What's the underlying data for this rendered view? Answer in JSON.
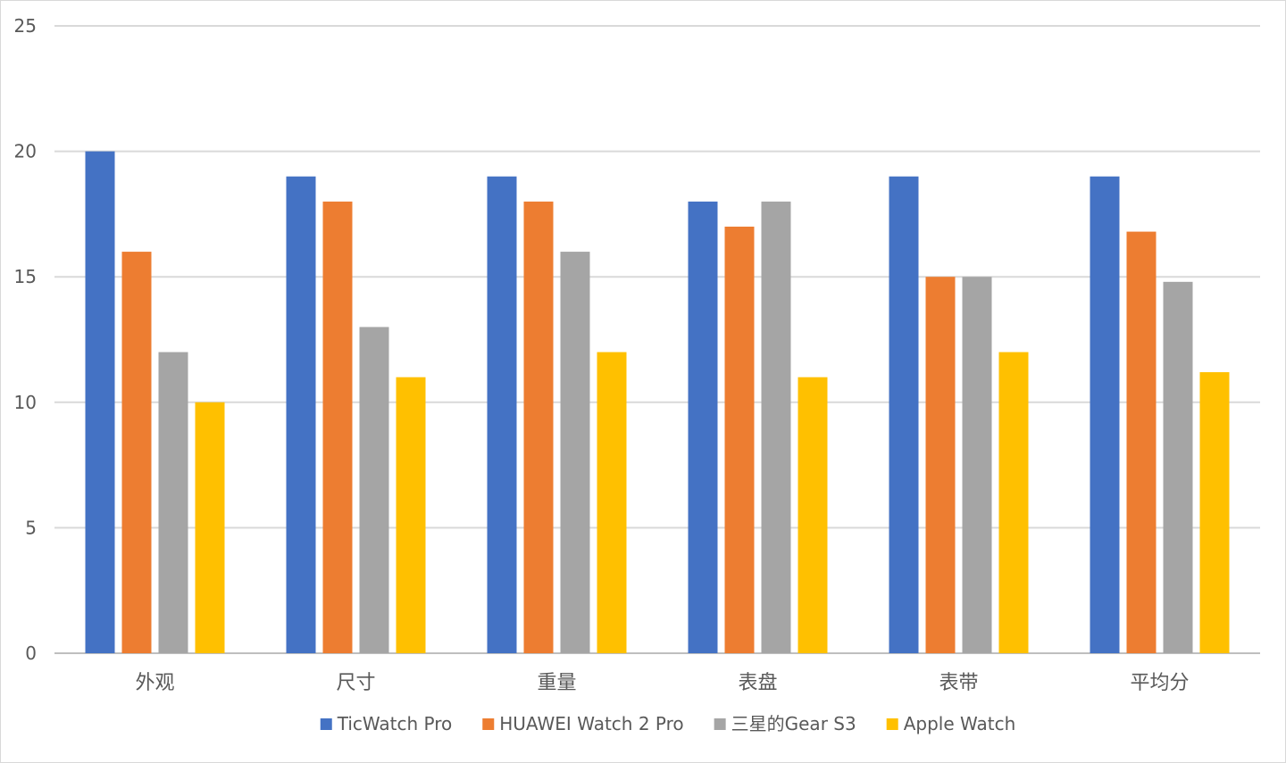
{
  "chart_data": {
    "type": "bar",
    "categories": [
      "外观",
      "尺寸",
      "重量",
      "表盘",
      "表带",
      "平均分"
    ],
    "series": [
      {
        "name": "TicWatch Pro",
        "color": "#4472C4",
        "values": [
          20,
          19,
          19,
          18,
          19,
          19
        ]
      },
      {
        "name": "HUAWEI Watch 2 Pro",
        "color": "#ED7D31",
        "values": [
          16,
          18,
          18,
          17,
          15,
          16.8
        ]
      },
      {
        "name": "三星的Gear S3",
        "color": "#A5A5A5",
        "values": [
          12,
          13,
          16,
          18,
          15,
          14.8
        ]
      },
      {
        "name": "Apple Watch",
        "color": "#FFC000",
        "values": [
          10,
          11,
          12,
          11,
          12,
          11.2
        ]
      }
    ],
    "ylim": [
      0,
      25
    ],
    "yticks": [
      0,
      5,
      10,
      15,
      20,
      25
    ],
    "grid": true,
    "legend_position": "bottom",
    "title": "",
    "xlabel": "",
    "ylabel": ""
  },
  "colors": {
    "grid": "#d9d9d9",
    "axis": "#bfbfbf",
    "text": "#595959"
  }
}
